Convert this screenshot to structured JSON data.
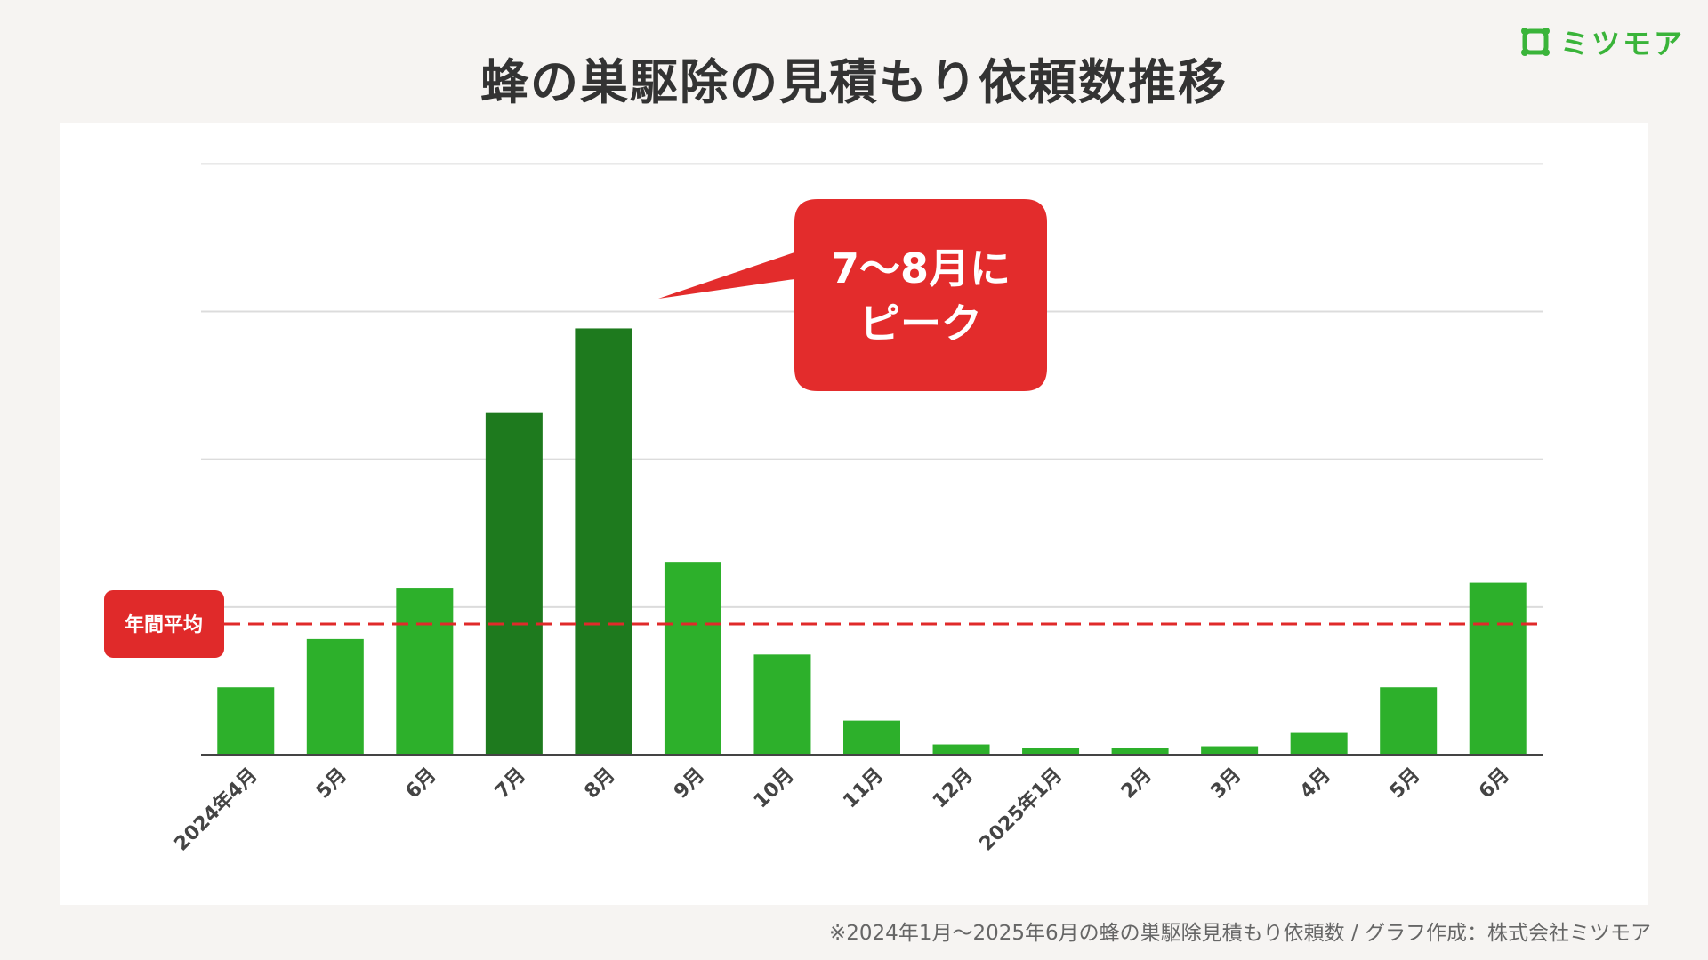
{
  "header": {
    "title": "蜂の巣駆除の見積もり依頼数推移"
  },
  "logo": {
    "text": "ミツモア",
    "icon": "mitsumore-logo-icon",
    "color": "#3ab43a"
  },
  "footer": {
    "note": "※2024年1月〜2025年6月の蜂の巣駆除見積もり依頼数 / グラフ作成：株式会社ミツモア"
  },
  "chart_data": {
    "type": "bar",
    "title": "蜂の巣駆除の見積もり依頼数推移",
    "categories": [
      "2024年4月",
      "5月",
      "6月",
      "7月",
      "8月",
      "9月",
      "10月",
      "11月",
      "12月",
      "2025年1月",
      "2月",
      "3月",
      "4月",
      "5月",
      "6月"
    ],
    "values": [
      15.2,
      26.1,
      37.5,
      77.1,
      96.2,
      43.5,
      22.6,
      7.7,
      2.3,
      1.5,
      1.5,
      1.9,
      4.9,
      15.2,
      38.8
    ],
    "ylim": [
      0,
      133
    ],
    "gridlines": [
      33.33,
      66.67,
      100,
      133.33
    ],
    "y_tick_labels_shown": false,
    "grid": true,
    "bar_color": "#2db02b",
    "highlight_color": "#1e7a1e",
    "highlight_categories": [
      "7月",
      "8月"
    ],
    "average_line": {
      "label": "年間平均",
      "value": 29.5,
      "color": "#e02a2a"
    },
    "annotation": {
      "lines": [
        "7〜8月に",
        "ピーク"
      ],
      "color": "#e32c2c"
    }
  }
}
